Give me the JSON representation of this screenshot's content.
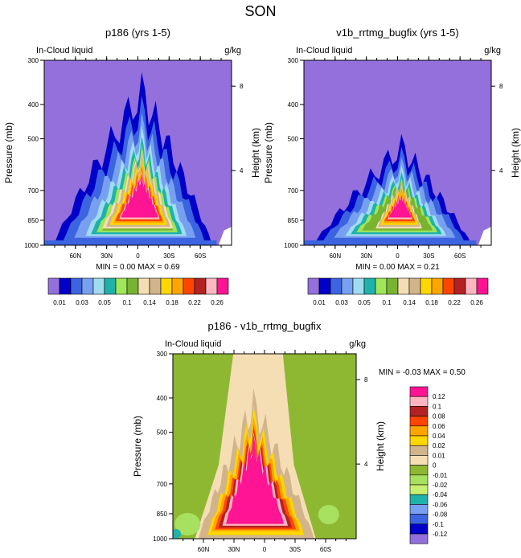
{
  "page": {
    "title": "SON"
  },
  "panels": [
    {
      "id": "top-left",
      "title": "p186 (yrs 1-5)",
      "left_label": "In-Cloud liquid",
      "right_label": "g/kg",
      "y_label": "Pressure (mb)",
      "y2_label": "Height (km)",
      "stats": "MIN =   0.00  MAX =   0.69",
      "max_value": 0.69,
      "intensity": 1.0
    },
    {
      "id": "top-right",
      "title": "v1b_rrtmg_bugfix (yrs 1-5)",
      "left_label": "In-Cloud liquid",
      "right_label": "g/kg",
      "y_label": "Pressure (mb)",
      "y2_label": "Height (km)",
      "stats": "MIN =   0.00  MAX =   0.21",
      "max_value": 0.21,
      "intensity": 0.62
    },
    {
      "id": "bottom",
      "title": "p186 - v1b_rrtmg_bugfix",
      "left_label": "In-Cloud liquid",
      "right_label": "g/kg",
      "y_label": "Pressure (mb)",
      "y2_label": "Height (km)",
      "stats": "MIN =  -0.03  MAX =   0.50",
      "min_value": -0.03,
      "max_value": 0.5
    }
  ],
  "chart_data": [
    {
      "type": "heatmap",
      "title": "p186 (yrs 1-5)",
      "subtitle": "In-Cloud liquid",
      "units": "g/kg",
      "ylabel": "Pressure (mb)",
      "y2label": "Height (km)",
      "x_ticks": [
        "60N",
        "30N",
        "0",
        "30S",
        "60S"
      ],
      "x_tick_lat": [
        60,
        30,
        0,
        -30,
        -60
      ],
      "xlim": [
        90,
        -90
      ],
      "y_ticks": [
        "300",
        "400",
        "500",
        "700",
        "850",
        "1000"
      ],
      "ylim": [
        1000,
        300
      ],
      "y2_ticks": [
        "8",
        "4"
      ],
      "levels": [
        "0.01",
        "0.03",
        "0.05",
        "0.1",
        "0.14",
        "0.18",
        "0.22",
        "0.26"
      ],
      "min": 0.0,
      "max": 0.69
    },
    {
      "type": "heatmap",
      "title": "v1b_rrtmg_bugfix (yrs 1-5)",
      "subtitle": "In-Cloud liquid",
      "units": "g/kg",
      "ylabel": "Pressure (mb)",
      "y2label": "Height (km)",
      "x_ticks": [
        "60N",
        "30N",
        "0",
        "30S",
        "60S"
      ],
      "x_tick_lat": [
        60,
        30,
        0,
        -30,
        -60
      ],
      "xlim": [
        90,
        -90
      ],
      "y_ticks": [
        "300",
        "400",
        "500",
        "700",
        "850",
        "1000"
      ],
      "ylim": [
        1000,
        300
      ],
      "y2_ticks": [
        "8",
        "4"
      ],
      "levels": [
        "0.01",
        "0.03",
        "0.05",
        "0.1",
        "0.14",
        "0.18",
        "0.22",
        "0.26"
      ],
      "min": 0.0,
      "max": 0.21
    },
    {
      "type": "heatmap",
      "title": "p186 - v1b_rrtmg_bugfix",
      "subtitle": "In-Cloud liquid",
      "units": "g/kg",
      "ylabel": "Pressure (mb)",
      "y2label": "Height (km)",
      "x_ticks": [
        "60N",
        "30N",
        "0",
        "30S",
        "60S"
      ],
      "x_tick_lat": [
        60,
        30,
        0,
        -30,
        -60
      ],
      "xlim": [
        90,
        -90
      ],
      "y_ticks": [
        "300",
        "400",
        "500",
        "700",
        "850",
        "1000"
      ],
      "ylim": [
        1000,
        300
      ],
      "y2_ticks": [
        "8",
        "4"
      ],
      "levels": [
        "0.12",
        "0.1",
        "0.08",
        "0.06",
        "0.04",
        "0.02",
        "0.01",
        "0",
        "-0.01",
        "-0.02",
        "-0.04",
        "-0.06",
        "-0.08",
        "-0.1",
        "-0.12"
      ],
      "min": -0.03,
      "max": 0.5
    }
  ],
  "colors": {
    "abs_scale": [
      "#9370db",
      "#0000c8",
      "#3c64e0",
      "#78a0f0",
      "#a0dcf0",
      "#20b2aa",
      "#a0e65a",
      "#78b432",
      "#f5deb3",
      "#d2b48c",
      "#ffd700",
      "#ffa500",
      "#ff4500",
      "#b22222",
      "#ffb6c1",
      "#ff1493"
    ],
    "diff_scale": [
      "#ff1493",
      "#ffb6c1",
      "#b22222",
      "#ff4500",
      "#ffa500",
      "#ffd700",
      "#d2b48c",
      "#f5deb3",
      "#8fb832",
      "#a8e060",
      "#c8f070",
      "#20b2aa",
      "#78a0f0",
      "#3c64e0",
      "#0000c8",
      "#9370db"
    ]
  }
}
